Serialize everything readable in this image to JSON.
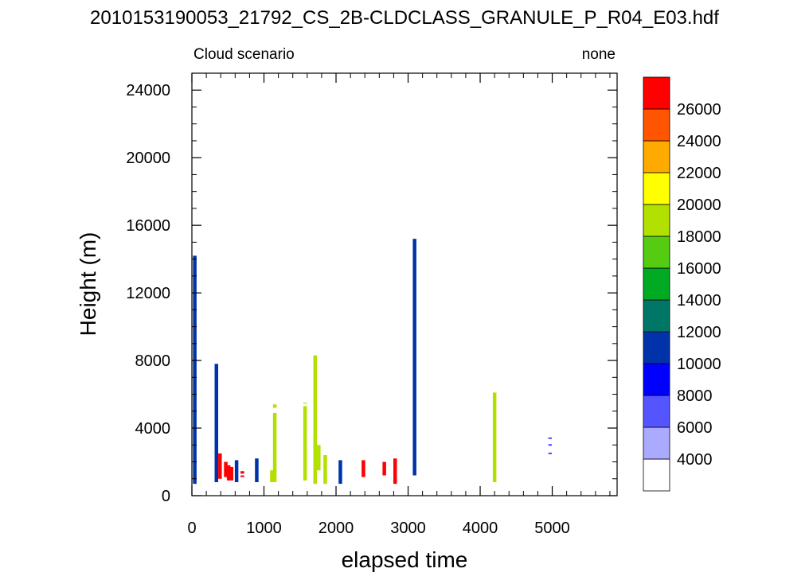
{
  "figure": {
    "main_title": "2010153190053_21792_CS_2B-CLDCLASS_GRANULE_P_R04_E03.hdf",
    "left_string": "Cloud scenario",
    "right_string": "none"
  },
  "chart_data": {
    "type": "heatmap",
    "title": "Cloud scenario",
    "xlabel": "elapsed time",
    "ylabel": "Height (m)",
    "xlim": [
      0,
      5900
    ],
    "ylim": [
      0,
      25000
    ],
    "xticks": [
      0,
      1000,
      2000,
      3000,
      4000,
      5000
    ],
    "xtick_labels": [
      "0",
      "1000",
      "2000",
      "3000",
      "4000",
      "5000"
    ],
    "yticks": [
      0,
      4000,
      8000,
      12000,
      16000,
      20000,
      24000
    ],
    "ytick_labels": [
      "0",
      "4000",
      "8000",
      "12000",
      "16000",
      "20000",
      "24000"
    ],
    "grid": false,
    "colorbar": {
      "position": "right",
      "levels": [
        4000,
        6000,
        8000,
        10000,
        12000,
        14000,
        16000,
        18000,
        20000,
        22000,
        24000,
        26000
      ],
      "level_labels": [
        "4000",
        "6000",
        "8000",
        "10000",
        "12000",
        "14000",
        "16000",
        "18000",
        "20000",
        "22000",
        "24000",
        "26000"
      ],
      "colors": [
        "#ffffff",
        "#aaaaff",
        "#5555ff",
        "#0000ff",
        "#0033aa",
        "#007766",
        "#00aa22",
        "#55cc11",
        "#b2e000",
        "#ffff00",
        "#ffaa00",
        "#ff5500",
        "#ff0000"
      ]
    },
    "series": [
      {
        "x": 40,
        "y0": 700,
        "y1": 14200,
        "color": "#0033aa"
      },
      {
        "x": 340,
        "y0": 800,
        "y1": 7800,
        "color": "#0033aa"
      },
      {
        "x": 390,
        "y0": 1000,
        "y1": 2500,
        "color": "#ff0000"
      },
      {
        "x": 470,
        "y0": 1100,
        "y1": 2000,
        "color": "#ff0000"
      },
      {
        "x": 510,
        "y0": 900,
        "y1": 1800,
        "color": "#ff0000"
      },
      {
        "x": 550,
        "y0": 900,
        "y1": 1700,
        "color": "#ff0000"
      },
      {
        "x": 620,
        "y0": 800,
        "y1": 2100,
        "color": "#0033aa"
      },
      {
        "x": 700,
        "y0": 1300,
        "y1": 1450,
        "color": "#ff0000"
      },
      {
        "x": 700,
        "y0": 1100,
        "y1": 1200,
        "color": "#ff0000"
      },
      {
        "x": 900,
        "y0": 800,
        "y1": 2200,
        "color": "#0033aa"
      },
      {
        "x": 1110,
        "y0": 800,
        "y1": 1500,
        "color": "#b2e000"
      },
      {
        "x": 1150,
        "y0": 800,
        "y1": 4900,
        "color": "#b2e000"
      },
      {
        "x": 1150,
        "y0": 5200,
        "y1": 5400,
        "color": "#b2e000"
      },
      {
        "x": 1570,
        "y0": 900,
        "y1": 5300,
        "color": "#b2e000"
      },
      {
        "x": 1570,
        "y0": 5450,
        "y1": 5500,
        "color": "#b2e000"
      },
      {
        "x": 1710,
        "y0": 700,
        "y1": 8300,
        "color": "#b2e000"
      },
      {
        "x": 1760,
        "y0": 1500,
        "y1": 3000,
        "color": "#b2e000"
      },
      {
        "x": 1850,
        "y0": 700,
        "y1": 2400,
        "color": "#b2e000"
      },
      {
        "x": 2060,
        "y0": 700,
        "y1": 2100,
        "color": "#0033aa"
      },
      {
        "x": 2380,
        "y0": 1100,
        "y1": 2100,
        "color": "#ff0000"
      },
      {
        "x": 2670,
        "y0": 1200,
        "y1": 2000,
        "color": "#ff0000"
      },
      {
        "x": 2820,
        "y0": 700,
        "y1": 2200,
        "color": "#ff0000"
      },
      {
        "x": 3090,
        "y0": 1200,
        "y1": 15200,
        "color": "#0033aa"
      },
      {
        "x": 4200,
        "y0": 800,
        "y1": 6100,
        "color": "#b2e000"
      },
      {
        "x": 4970,
        "y0": 3350,
        "y1": 3450,
        "color": "#5555ff"
      },
      {
        "x": 4970,
        "y0": 2950,
        "y1": 3050,
        "color": "#5555ff"
      },
      {
        "x": 4970,
        "y0": 2450,
        "y1": 2550,
        "color": "#5555ff"
      }
    ]
  }
}
